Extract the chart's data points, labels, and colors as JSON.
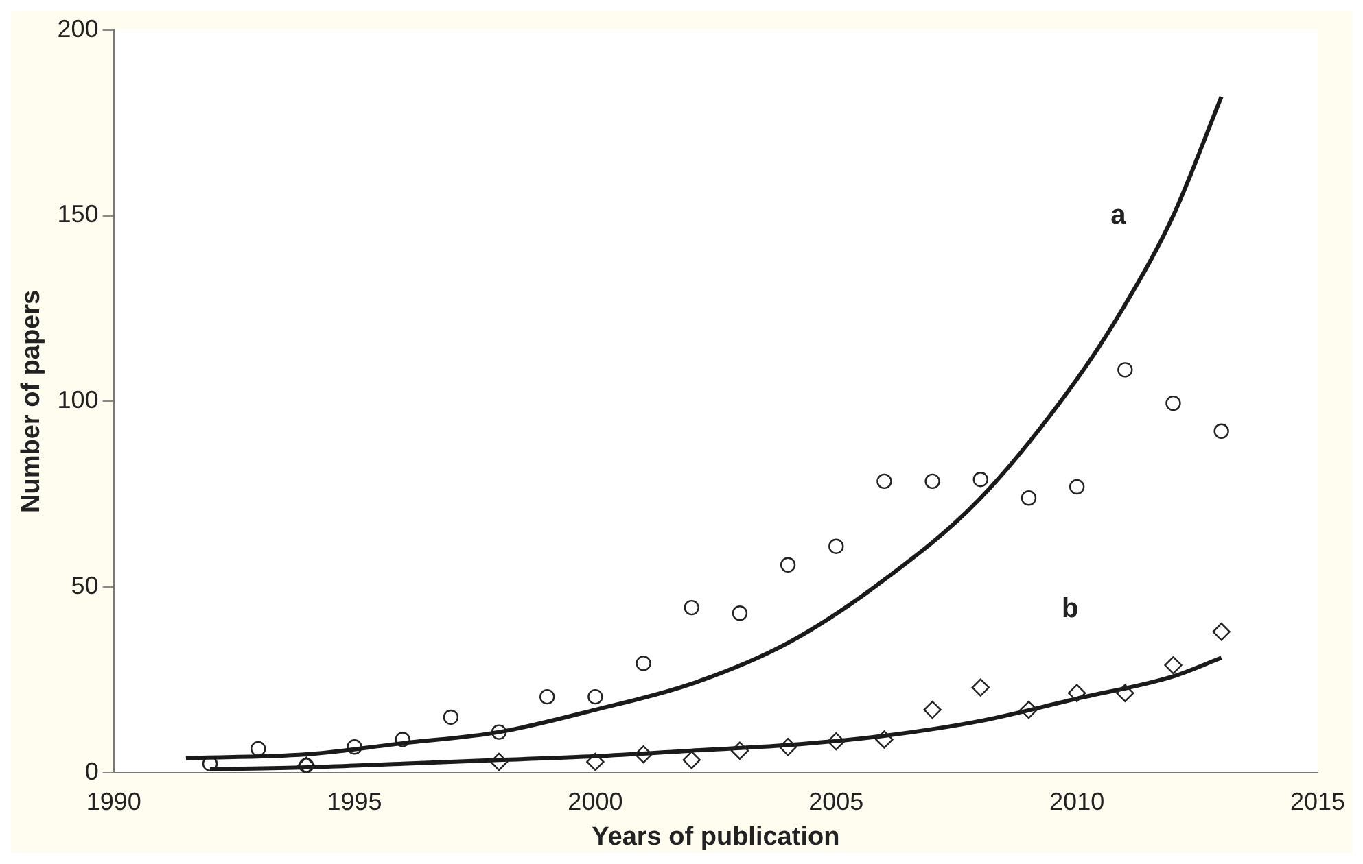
{
  "chart_data": {
    "type": "scatter",
    "xlabel": "Years of publication",
    "ylabel": "Number of papers",
    "xlim": [
      1990,
      2015
    ],
    "xticks": [
      1990,
      1995,
      2000,
      2005,
      2010,
      2015
    ],
    "ylim": [
      0,
      200
    ],
    "yticks": [
      0,
      50,
      100,
      150,
      200
    ],
    "grid": false,
    "legend": false,
    "series": [
      {
        "type": "scatter",
        "marker": "circle",
        "color": "#222222",
        "x": [
          1992,
          1993,
          1994,
          1995,
          1996,
          1997,
          1998,
          1999,
          2000,
          2001,
          2002,
          2003,
          2004,
          2005,
          2006,
          2007,
          2008,
          2009,
          2010,
          2011,
          2012,
          2013
        ],
        "values": [
          2.5,
          6.5,
          2,
          7,
          9,
          15,
          11,
          20.5,
          20.5,
          29.5,
          44.5,
          43,
          56,
          61,
          78.5,
          78.5,
          79,
          74,
          77,
          108.5,
          99.5,
          92
        ]
      },
      {
        "type": "scatter",
        "marker": "diamond",
        "color": "#222222",
        "x": [
          1994,
          1998,
          2000,
          2001,
          2002,
          2003,
          2004,
          2005,
          2006,
          2007,
          2008,
          2009,
          2010,
          2011,
          2012,
          2013
        ],
        "values": [
          2,
          3,
          3,
          5,
          3.5,
          6,
          7,
          8.5,
          9,
          17,
          23,
          17,
          21.5,
          21.5,
          29,
          38
        ]
      },
      {
        "type": "line",
        "name": "a",
        "line_style": "solid",
        "marker": "none",
        "color": "#1a1a1a",
        "x": [
          1991.5,
          1994,
          1996,
          1998,
          2000,
          2002,
          2004,
          2006,
          2008,
          2010,
          2011,
          2012,
          2013
        ],
        "values": [
          4,
          5,
          8,
          11,
          17,
          24,
          35,
          52,
          74,
          106,
          126,
          150,
          182
        ]
      },
      {
        "type": "line",
        "name": "b",
        "line_style": "solid",
        "marker": "none",
        "color": "#1a1a1a",
        "x": [
          1992,
          1994,
          1996,
          1998,
          2000,
          2002,
          2004,
          2006,
          2008,
          2010,
          2012,
          2013
        ],
        "values": [
          1,
          1.5,
          2.5,
          3.5,
          4.5,
          6,
          7.5,
          10,
          14,
          20,
          26,
          31
        ]
      }
    ]
  }
}
